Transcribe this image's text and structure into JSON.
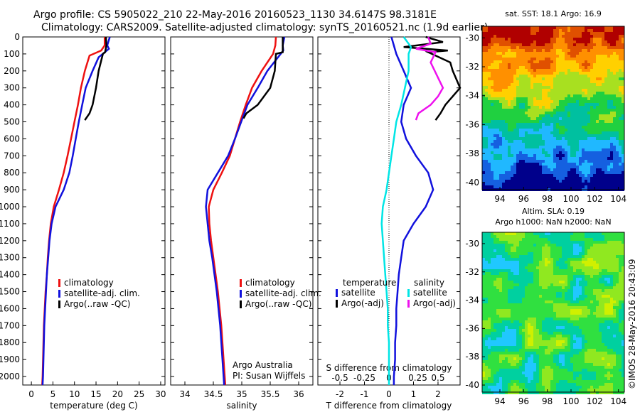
{
  "header": {
    "title_line1": "Argo profile: CS 5905022_210 22-May-2016 20160523_1130 34.6147S 98.3181E",
    "title_line2": "Climatology: CARS2009. Satellite-adjusted climatology: synTS_20160521.nc (1.9d earlier)",
    "credit": "Argo Australia",
    "pi": "PI: Susan Wijffels",
    "stamp": "©IMOS 28-May-2016 20:43:09"
  },
  "colors": {
    "climatology": "#ee1111",
    "satellite": "#1111dd",
    "argo": "#000000",
    "sal_satellite": "#00e5e5",
    "sal_argo": "#ee11ee"
  },
  "chart_data": [
    {
      "type": "line",
      "id": "temperature",
      "xlabel": "temperature (deg C)",
      "ylabel": "",
      "xlim": [
        -2,
        31
      ],
      "ylim": [
        2050,
        0
      ],
      "xticks": [
        0,
        5,
        10,
        15,
        20,
        25,
        30
      ],
      "yticks": [
        0,
        100,
        200,
        300,
        400,
        500,
        600,
        700,
        800,
        900,
        1000,
        1100,
        1200,
        1300,
        1400,
        1500,
        1600,
        1700,
        1800,
        1900,
        2000
      ],
      "legend": [
        "climatology",
        "satellite-adj. clim.",
        "Argo(..raw -QC)"
      ],
      "series": [
        {
          "name": "climatology",
          "color": "#ee1111",
          "x": [
            17.0,
            17.0,
            16.2,
            13.5,
            12.4,
            11.5,
            10.8,
            10.0,
            9.2,
            8.4,
            7.5,
            6.4,
            5.2,
            4.5,
            4.1,
            3.8,
            3.6,
            3.3,
            3.1,
            2.9,
            2.8,
            2.7,
            2.6,
            2.5
          ],
          "y": [
            0,
            50,
            80,
            110,
            200,
            300,
            400,
            500,
            600,
            700,
            800,
            900,
            1000,
            1100,
            1200,
            1300,
            1400,
            1500,
            1600,
            1700,
            1800,
            1900,
            2000,
            2050
          ]
        },
        {
          "name": "satellite-adj. clim.",
          "color": "#1111dd",
          "x": [
            18.2,
            17.6,
            18.0,
            15.6,
            14.2,
            12.6,
            11.8,
            11.0,
            10.3,
            9.6,
            8.8,
            7.5,
            5.6,
            4.7,
            4.2,
            3.9,
            3.6,
            3.4,
            3.2,
            3.0,
            2.9,
            2.8,
            2.7,
            2.6
          ],
          "y": [
            0,
            50,
            70,
            120,
            200,
            300,
            400,
            500,
            600,
            700,
            800,
            900,
            1000,
            1100,
            1200,
            1300,
            1400,
            1500,
            1600,
            1700,
            1800,
            1900,
            2000,
            2050
          ]
        },
        {
          "name": "Argo(..raw -QC)",
          "color": "#000000",
          "x": [
            17.3,
            17.4,
            17.1,
            16.6,
            15.6,
            15.0,
            14.2,
            13.5,
            12.4
          ],
          "y": [
            0,
            50,
            90,
            100,
            200,
            300,
            400,
            450,
            490
          ]
        }
      ]
    },
    {
      "type": "line",
      "id": "salinity",
      "xlabel": "salinity",
      "xlim": [
        33.75,
        36.25
      ],
      "ylim": [
        2050,
        0
      ],
      "xticks": [
        34,
        34.5,
        35,
        35.5,
        36
      ],
      "legend": [
        "climatology",
        "satellite-adj. clim.",
        "Argo(..raw -QC)"
      ],
      "series": [
        {
          "name": "climatology",
          "color": "#ee1111",
          "x": [
            35.6,
            35.59,
            35.55,
            35.35,
            35.18,
            35.07,
            34.97,
            34.88,
            34.79,
            34.65,
            34.5,
            34.42,
            34.43,
            34.46,
            34.5,
            34.54,
            34.58,
            34.61,
            34.64,
            34.66,
            34.68,
            34.7,
            34.71
          ],
          "y": [
            0,
            50,
            100,
            200,
            300,
            400,
            500,
            600,
            700,
            800,
            900,
            1000,
            1100,
            1200,
            1300,
            1400,
            1500,
            1600,
            1700,
            1800,
            1900,
            2000,
            2050
          ]
        },
        {
          "name": "satellite-adj. clim.",
          "color": "#1111dd",
          "x": [
            35.75,
            35.72,
            35.73,
            35.45,
            35.28,
            35.1,
            34.99,
            34.88,
            34.76,
            34.58,
            34.4,
            34.37,
            34.4,
            34.43,
            34.48,
            34.52,
            34.56,
            34.59,
            34.62,
            34.64,
            34.66,
            34.68,
            34.69
          ],
          "y": [
            0,
            50,
            80,
            200,
            300,
            400,
            500,
            600,
            700,
            800,
            900,
            1000,
            1100,
            1200,
            1300,
            1400,
            1500,
            1600,
            1700,
            1800,
            1900,
            2000,
            2050
          ]
        },
        {
          "name": "Argo(..raw -QC)",
          "color": "#000000",
          "x": [
            35.72,
            35.72,
            35.6,
            35.58,
            35.5,
            35.28,
            35.08,
            35.03
          ],
          "y": [
            0,
            90,
            100,
            200,
            300,
            400,
            450,
            480
          ]
        }
      ]
    },
    {
      "type": "line",
      "id": "difference",
      "xlabel": "T difference from climatology",
      "top_label": "S difference from climatology",
      "xlim": [
        -2.9,
        2.9
      ],
      "ylim": [
        2050,
        0
      ],
      "xticks": [
        -2,
        -1,
        0,
        1,
        2
      ],
      "xticks_top_labels": [
        "-0.5",
        "-0.25",
        "0",
        "0.25",
        "0.5"
      ],
      "xticks_top_pos": [
        -2,
        -1,
        0,
        1,
        2
      ],
      "legend_left_title": "temperature",
      "legend_right_title": "salinity",
      "legend": [
        "satellite",
        "Argo(-adj)",
        "satellite",
        "Argo(-adj)"
      ],
      "series": [
        {
          "name": "temperature satellite",
          "color": "#1111dd",
          "x": [
            0.1,
            0.3,
            0.6,
            0.9,
            0.6,
            0.5,
            0.7,
            1.1,
            1.6,
            1.8,
            1.5,
            1.0,
            0.6,
            0.5,
            0.4,
            0.35,
            0.3,
            0.3,
            0.25,
            0.25,
            0.2,
            0.2,
            0.2
          ],
          "y": [
            0,
            100,
            200,
            300,
            400,
            500,
            600,
            700,
            800,
            900,
            1000,
            1100,
            1200,
            1300,
            1400,
            1500,
            1600,
            1700,
            1800,
            1900,
            2000,
            2050,
            2050
          ]
        },
        {
          "name": "temperature Argo(-adj)",
          "color": "#000000",
          "x": [
            1.5,
            2.2,
            0.6,
            2.4,
            1.6,
            2.5,
            2.6,
            2.9,
            2.3,
            2.1,
            1.9
          ],
          "y": [
            0,
            30,
            60,
            80,
            90,
            150,
            200,
            300,
            400,
            450,
            490
          ]
        },
        {
          "name": "salinity satellite",
          "color": "#00e5e5",
          "x": [
            0.6,
            0.9,
            0.8,
            0.8,
            0.65,
            0.5,
            0.3,
            0.2,
            0.1,
            0.0,
            -0.1,
            -0.25,
            -0.3,
            -0.25,
            -0.2,
            -0.15,
            -0.1,
            -0.05,
            -0.05,
            0.0,
            0.0,
            0.0
          ],
          "y": [
            0,
            60,
            100,
            200,
            300,
            400,
            500,
            600,
            700,
            800,
            900,
            1000,
            1100,
            1200,
            1300,
            1400,
            1500,
            1600,
            1700,
            1800,
            1900,
            2050
          ]
        },
        {
          "name": "salinity Argo(-adj)",
          "color": "#ee11ee",
          "x": [
            1.6,
            1.7,
            1.1,
            1.9,
            1.7,
            2.2,
            2.0,
            1.7,
            1.2,
            1.1
          ],
          "y": [
            0,
            40,
            70,
            90,
            150,
            300,
            350,
            400,
            450,
            490
          ]
        }
      ]
    },
    {
      "type": "heatmap",
      "id": "sst_map",
      "title": "sat. SST: 18.1 Argo: 16.9",
      "xticks": [
        94,
        96,
        98,
        100,
        102,
        104
      ],
      "yticks": [
        -30,
        -32,
        -34,
        -36,
        -38,
        -40
      ],
      "xlim": [
        92.5,
        104.5
      ],
      "ylim": [
        -40.5,
        -29.2
      ],
      "palette": [
        "#00008b",
        "#1560e0",
        "#20b8ff",
        "#00c0a0",
        "#20d040",
        "#a8e020",
        "#ffd000",
        "#ff9000",
        "#e05000",
        "#b00000"
      ]
    },
    {
      "type": "heatmap",
      "id": "sla_map",
      "title": "Altim. SLA: 0.19",
      "subtitle": "Argo h1000: NaN h2000: NaN",
      "xticks": [
        94,
        96,
        98,
        100,
        102,
        104
      ],
      "yticks": [
        -30,
        -32,
        -34,
        -36,
        -38,
        -40
      ],
      "xlim": [
        92.5,
        104.5
      ],
      "ylim": [
        -40.5,
        -29.2
      ],
      "palette": [
        "#20c8ff",
        "#00d0a0",
        "#30e040",
        "#90e820",
        "#d0f000",
        "#ffd800"
      ]
    }
  ]
}
